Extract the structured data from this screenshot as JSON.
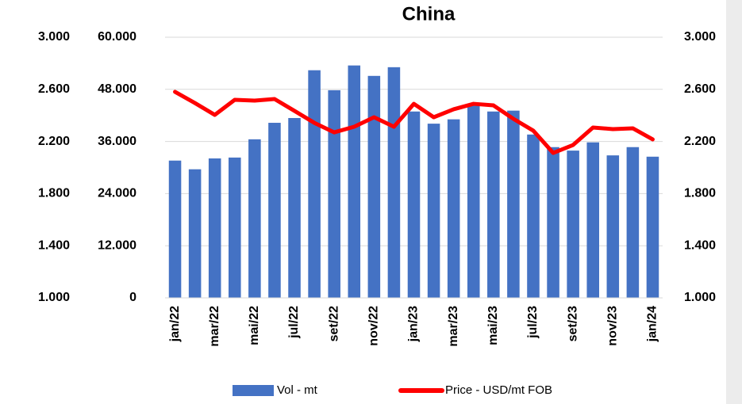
{
  "chart_data": {
    "type": "bar_line",
    "title": "China",
    "categories": [
      "jan/22",
      null,
      "mar/22",
      null,
      "mai/22",
      null,
      "jul/22",
      null,
      "set/22",
      null,
      "nov/22",
      null,
      "jan/23",
      null,
      "mar/23",
      null,
      "mai/23",
      null,
      "jul/23",
      null,
      "set/23",
      null,
      "nov/23",
      null,
      "jan/24"
    ],
    "series": [
      {
        "name": "Vol - mt",
        "type": "bar",
        "color": "#4472c4",
        "values": [
          31600,
          29600,
          32100,
          32300,
          36500,
          40300,
          41400,
          52400,
          47800,
          53500,
          51100,
          53100,
          42900,
          40100,
          41100,
          44300,
          42900,
          43100,
          37600,
          34700,
          33900,
          35800,
          32800,
          34700,
          32500
        ]
      },
      {
        "name": "Price - USD/mt FOB",
        "type": "line",
        "axis": "y2",
        "color": "#ff0000",
        "values": [
          2581,
          2495,
          2404,
          2520,
          2514,
          2526,
          2435,
          2343,
          2270,
          2313,
          2386,
          2313,
          2489,
          2386,
          2447,
          2489,
          2477,
          2374,
          2283,
          2112,
          2173,
          2307,
          2295,
          2301,
          2216
        ]
      }
    ],
    "ylim": [
      0,
      60000
    ],
    "yticks": [
      0,
      {
        "value": 12000,
        "label": "12.000"
      },
      {
        "value": 24000,
        "label": "24.000"
      },
      {
        "value": 36000,
        "label": "36.000"
      },
      {
        "value": 48000,
        "label": "48.000"
      },
      {
        "value": 60000,
        "label": "60.000"
      }
    ],
    "y2lim": [
      1000,
      3000
    ],
    "y2ticks": [
      {
        "value": 1000,
        "label": "1.000"
      },
      {
        "value": 1400,
        "label": "1.400"
      },
      {
        "value": 1800,
        "label": "1.800"
      },
      {
        "value": 2200,
        "label": "2.200"
      },
      {
        "value": 2600,
        "label": "2.600"
      },
      {
        "value": 3000,
        "label": "3.000"
      }
    ],
    "grid": true,
    "legend": "bottom"
  }
}
